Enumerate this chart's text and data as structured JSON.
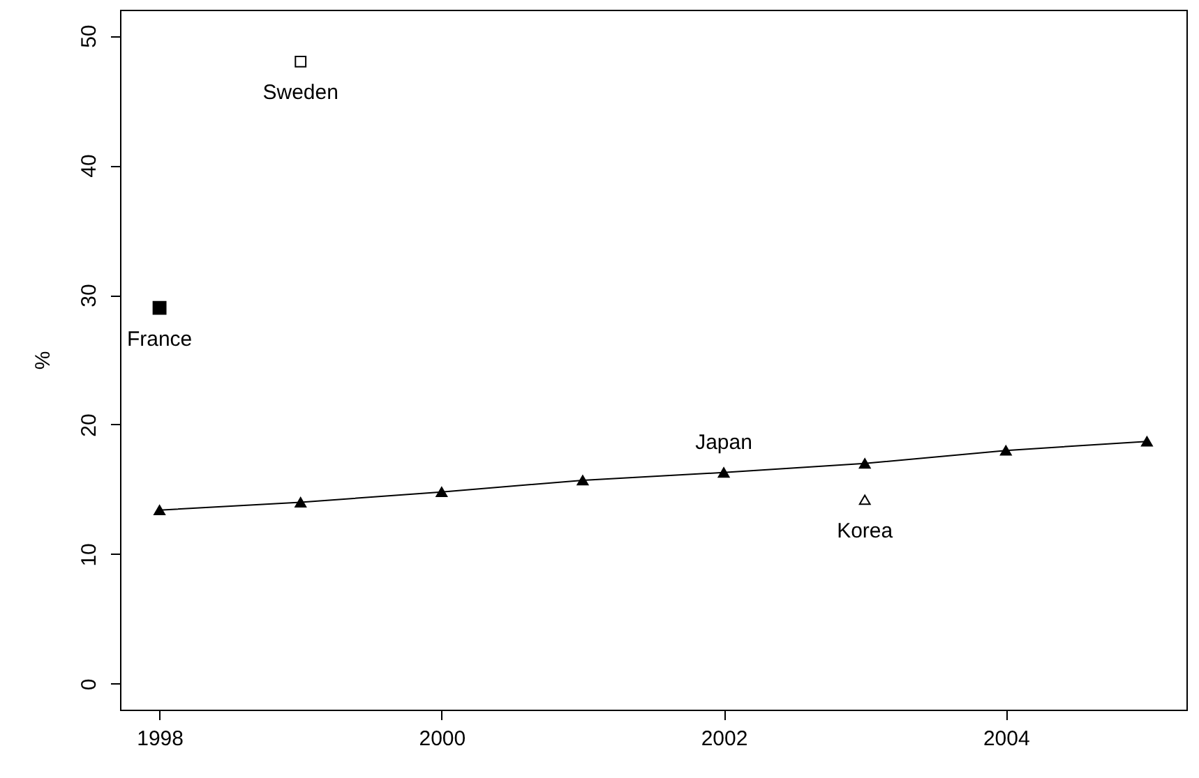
{
  "chart_data": {
    "type": "scatter",
    "ylabel": "%",
    "xlim": [
      1997.72,
      2005.28
    ],
    "xticks": [
      1998,
      2000,
      2002,
      2004
    ],
    "ylim": [
      -2,
      52
    ],
    "yticks": [
      0,
      10,
      20,
      30,
      40,
      50
    ],
    "grid": false,
    "series": [
      {
        "name": "France",
        "color": "#000000",
        "marker": "square",
        "x": [
          1998
        ],
        "values": [
          29.0
        ]
      },
      {
        "name": "Sweden",
        "color": "#ffffff",
        "marker": "square",
        "x": [
          1999
        ],
        "values": [
          48.0
        ]
      },
      {
        "name": "Japan",
        "type": "line",
        "line_style": "solid",
        "color": "#000000",
        "marker": "triangle",
        "x": [
          1998,
          1999,
          2000,
          2001,
          2002,
          2003,
          2004,
          2005
        ],
        "values": [
          13.4,
          14.0,
          14.8,
          15.7,
          16.3,
          17.0,
          18.0,
          18.7
        ]
      },
      {
        "name": "Korea",
        "color": "#ffffff",
        "marker": "triangle",
        "x": [
          2003
        ],
        "values": [
          14.2
        ]
      }
    ]
  }
}
